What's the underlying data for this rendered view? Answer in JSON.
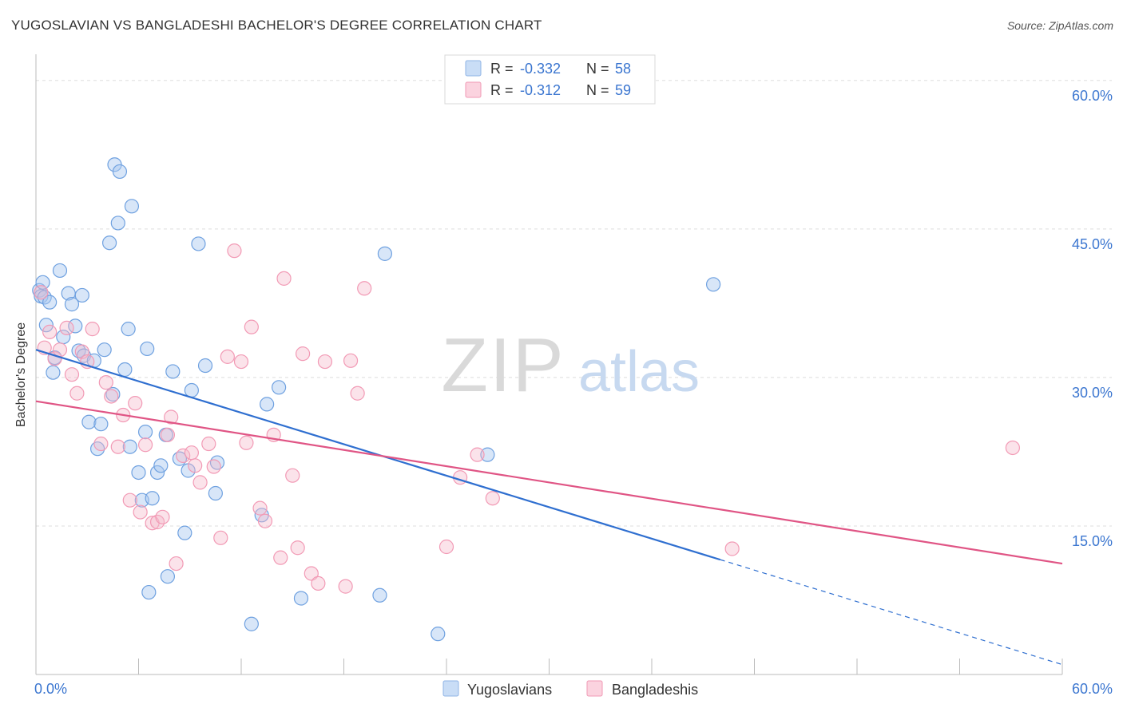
{
  "header": {
    "title": "YUGOSLAVIAN VS BANGLADESHI BACHELOR'S DEGREE CORRELATION CHART",
    "source": "Source: ZipAtlas.com"
  },
  "watermark": {
    "zip": "ZIP",
    "atlas": "atlas"
  },
  "legend_box": {
    "rows": [
      {
        "r_label": "R =",
        "r_value": "-0.332",
        "n_label": "N =",
        "n_value": "58",
        "color": "#a9c8f0"
      },
      {
        "r_label": "R =",
        "r_value": "-0.312",
        "n_label": "N =",
        "n_value": "59",
        "color": "#f5b8cb"
      }
    ]
  },
  "bottom_legend": [
    {
      "label": "Yugoslavians",
      "color": "#a9c8f0"
    },
    {
      "label": "Bangladeshis",
      "color": "#f5b8cb"
    }
  ],
  "chart_data": {
    "type": "scatter",
    "ylabel": "Bachelor's Degree",
    "xlim": [
      0,
      60
    ],
    "ylim": [
      0,
      62
    ],
    "x_tick_labels": [
      "0.0%",
      "60.0%"
    ],
    "y_ticks": [
      15,
      30,
      45,
      60
    ],
    "y_tick_labels": [
      "15.0%",
      "30.0%",
      "45.0%",
      "60.0%"
    ],
    "grid": "horizontal dashed",
    "series": [
      {
        "name": "Yugoslavians",
        "color": "#6fa1e0",
        "line_color": "#2f6fd0",
        "trend": {
          "x0": 0,
          "y0": 32.8,
          "x1": 40,
          "y1": 11.6,
          "dash_to_x": 60,
          "dash_to_y": 1.0
        },
        "points": [
          [
            0.2,
            38.8
          ],
          [
            0.3,
            38.2
          ],
          [
            0.4,
            39.6
          ],
          [
            0.5,
            38.1
          ],
          [
            0.6,
            35.3
          ],
          [
            0.8,
            37.6
          ],
          [
            1.0,
            30.5
          ],
          [
            1.1,
            32.0
          ],
          [
            1.4,
            40.8
          ],
          [
            1.6,
            34.1
          ],
          [
            1.9,
            38.5
          ],
          [
            2.1,
            37.4
          ],
          [
            2.3,
            35.2
          ],
          [
            2.5,
            32.7
          ],
          [
            2.7,
            38.3
          ],
          [
            2.8,
            32.2
          ],
          [
            3.1,
            25.5
          ],
          [
            3.4,
            31.7
          ],
          [
            3.6,
            22.8
          ],
          [
            3.8,
            25.3
          ],
          [
            4.0,
            32.8
          ],
          [
            4.3,
            43.6
          ],
          [
            4.5,
            28.3
          ],
          [
            4.6,
            51.5
          ],
          [
            4.9,
            50.8
          ],
          [
            5.2,
            30.8
          ],
          [
            5.4,
            34.9
          ],
          [
            5.5,
            23.0
          ],
          [
            5.6,
            47.3
          ],
          [
            6.0,
            20.4
          ],
          [
            6.2,
            17.6
          ],
          [
            6.4,
            24.5
          ],
          [
            6.5,
            32.9
          ],
          [
            6.6,
            8.3
          ],
          [
            6.8,
            17.8
          ],
          [
            7.1,
            20.4
          ],
          [
            7.3,
            21.1
          ],
          [
            7.6,
            24.2
          ],
          [
            7.7,
            9.9
          ],
          [
            8.0,
            30.6
          ],
          [
            8.4,
            21.8
          ],
          [
            8.7,
            14.3
          ],
          [
            8.9,
            20.6
          ],
          [
            9.1,
            28.7
          ],
          [
            9.5,
            43.5
          ],
          [
            9.9,
            31.2
          ],
          [
            10.5,
            18.3
          ],
          [
            10.6,
            21.4
          ],
          [
            12.6,
            5.1
          ],
          [
            13.2,
            16.1
          ],
          [
            13.5,
            27.3
          ],
          [
            14.2,
            29.0
          ],
          [
            15.5,
            7.7
          ],
          [
            20.1,
            8.0
          ],
          [
            20.4,
            42.5
          ],
          [
            23.5,
            4.1
          ],
          [
            26.4,
            22.2
          ],
          [
            39.6,
            39.4
          ],
          [
            4.8,
            45.6
          ]
        ]
      },
      {
        "name": "Bangladeshis",
        "color": "#f29ab5",
        "line_color": "#e05585",
        "trend": {
          "x0": 0,
          "y0": 27.6,
          "x1": 60,
          "y1": 11.2
        },
        "points": [
          [
            0.3,
            38.6
          ],
          [
            0.5,
            33.0
          ],
          [
            0.8,
            34.6
          ],
          [
            1.1,
            31.9
          ],
          [
            1.4,
            32.8
          ],
          [
            1.8,
            35.0
          ],
          [
            2.1,
            30.3
          ],
          [
            2.4,
            28.4
          ],
          [
            2.7,
            32.6
          ],
          [
            3.0,
            31.6
          ],
          [
            3.3,
            34.9
          ],
          [
            3.8,
            23.3
          ],
          [
            4.1,
            29.5
          ],
          [
            4.4,
            28.1
          ],
          [
            4.8,
            23.0
          ],
          [
            5.1,
            26.2
          ],
          [
            5.5,
            17.6
          ],
          [
            5.8,
            27.4
          ],
          [
            6.1,
            16.4
          ],
          [
            6.4,
            23.2
          ],
          [
            6.8,
            15.3
          ],
          [
            7.1,
            15.4
          ],
          [
            7.4,
            15.9
          ],
          [
            7.7,
            24.2
          ],
          [
            7.9,
            26.0
          ],
          [
            8.2,
            11.2
          ],
          [
            8.6,
            22.1
          ],
          [
            9.1,
            22.4
          ],
          [
            9.3,
            21.1
          ],
          [
            9.6,
            19.4
          ],
          [
            10.1,
            23.3
          ],
          [
            10.4,
            21.0
          ],
          [
            10.8,
            13.8
          ],
          [
            11.2,
            32.1
          ],
          [
            11.6,
            42.8
          ],
          [
            12.0,
            31.6
          ],
          [
            12.3,
            23.4
          ],
          [
            12.6,
            35.1
          ],
          [
            13.1,
            16.8
          ],
          [
            13.4,
            15.5
          ],
          [
            13.9,
            24.2
          ],
          [
            14.3,
            11.8
          ],
          [
            14.5,
            40.0
          ],
          [
            15.0,
            20.1
          ],
          [
            15.3,
            12.8
          ],
          [
            15.6,
            32.4
          ],
          [
            16.1,
            10.2
          ],
          [
            16.5,
            9.2
          ],
          [
            16.9,
            31.6
          ],
          [
            18.1,
            8.9
          ],
          [
            18.4,
            31.7
          ],
          [
            18.8,
            28.4
          ],
          [
            19.2,
            39.0
          ],
          [
            24.0,
            12.9
          ],
          [
            24.8,
            19.9
          ],
          [
            25.8,
            22.2
          ],
          [
            26.7,
            17.8
          ],
          [
            40.7,
            12.7
          ],
          [
            57.1,
            22.9
          ]
        ]
      }
    ]
  }
}
